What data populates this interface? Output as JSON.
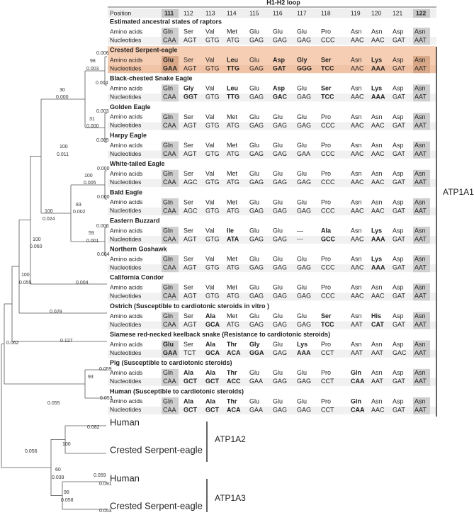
{
  "header": {
    "loop_label": "H1-H2 loop",
    "position_label": "Position",
    "positions": [
      111,
      112,
      113,
      114,
      115,
      116,
      117,
      118,
      119,
      120,
      121,
      122
    ],
    "shaded_columns": [
      0,
      11
    ]
  },
  "row_labels": {
    "amino": "Amino acids",
    "nucleotide": "Nucleotides"
  },
  "sections": [
    {
      "title": "Estimated ancestral states of  raptors",
      "amino_acids": [
        "Gln",
        "Ser",
        "Val",
        "Met",
        "Glu",
        "Glu",
        "Glu",
        "Pro",
        "Asn",
        "Asn",
        "Asp",
        "Asn"
      ],
      "nucleotides": [
        "CAA",
        "AGT",
        "GTG",
        "ATG",
        "GAG",
        "GAG",
        "GAG",
        "CCC",
        "AAC",
        "AAC",
        "GAT",
        "AAT"
      ],
      "bold": []
    },
    {
      "title": "Crested Serpent-eagle",
      "highlight": true,
      "amino_acids": [
        "Glu",
        "Ser",
        "Val",
        "Leu",
        "Glu",
        "Asp",
        "Gly",
        "Ser",
        "Asn",
        "Lys",
        "Asp",
        "Asn"
      ],
      "nucleotides": [
        "GAA",
        "AGT",
        "GTG",
        "TTG",
        "GAG",
        "GAT",
        "GGG",
        "TCC",
        "AAC",
        "AAA",
        "GAT",
        "AAT"
      ],
      "bold": [
        0,
        3,
        5,
        6,
        7,
        9
      ]
    },
    {
      "title": "Black-chested Snake Eagle",
      "amino_acids": [
        "Gln",
        "Gly",
        "Val",
        "Leu",
        "Glu",
        "Asp",
        "Glu",
        "Ser",
        "Asn",
        "Lys",
        "Asp",
        "Asn"
      ],
      "nucleotides": [
        "CAA",
        "GGT",
        "GTG",
        "TTG",
        "GAG",
        "GAC",
        "GAG",
        "TCC",
        "AAC",
        "AAA",
        "GAT",
        "AAT"
      ],
      "bold": [
        1,
        3,
        5,
        7,
        9
      ]
    },
    {
      "title": "Golden Eagle",
      "amino_acids": [
        "Gln",
        "Ser",
        "Val",
        "Met",
        "Glu",
        "Glu",
        "Glu",
        "Pro",
        "Asn",
        "Asn",
        "Asp",
        "Asn"
      ],
      "nucleotides": [
        "CAA",
        "AGT",
        "GTG",
        "ATG",
        "GAG",
        "GAG",
        "GAG",
        "CCC",
        "AAC",
        "AAC",
        "GAT",
        "AAT"
      ],
      "bold": []
    },
    {
      "title": "Harpy Eagle",
      "amino_acids": [
        "Gln",
        "Ser",
        "Val",
        "Met",
        "Glu",
        "Glu",
        "Glu",
        "Pro",
        "Asn",
        "Asn",
        "Asp",
        "Asn"
      ],
      "nucleotides": [
        "CAA",
        "AGT",
        "GTG",
        "ATG",
        "GAG",
        "GAG",
        "GAA",
        "CCC",
        "AAC",
        "AAC",
        "GAT",
        "AAT"
      ],
      "bold": []
    },
    {
      "title": "White-tailed Eagle",
      "amino_acids": [
        "Gln",
        "Ser",
        "Val",
        "Met",
        "Glu",
        "Glu",
        "Glu",
        "Pro",
        "Asn",
        "Asn",
        "Asp",
        "Asn"
      ],
      "nucleotides": [
        "CAA",
        "AGC",
        "GTG",
        "ATG",
        "GAG",
        "GAG",
        "GAG",
        "CCC",
        "AAC",
        "AAC",
        "GAT",
        "AAT"
      ],
      "bold": []
    },
    {
      "title": "Bald Eagle",
      "amino_acids": [
        "Gln",
        "Ser",
        "Val",
        "Met",
        "Glu",
        "Glu",
        "Glu",
        "Pro",
        "Asn",
        "Asn",
        "Asp",
        "Asn"
      ],
      "nucleotides": [
        "CAA",
        "AGC",
        "GTG",
        "ATG",
        "GAG",
        "GAG",
        "GAG",
        "CCC",
        "AAC",
        "AAC",
        "GAT",
        "AAT"
      ],
      "bold": []
    },
    {
      "title": "Eastern Buzzard",
      "amino_acids": [
        "Gln",
        "Ser",
        "Val",
        "Ile",
        "Glu",
        "Glu",
        "—",
        "Ala",
        "Asn",
        "Lys",
        "Asp",
        "Asn"
      ],
      "nucleotides": [
        "CAA",
        "AGT",
        "GTG",
        "ATA",
        "GAG",
        "GAG",
        "---",
        "GCC",
        "AAC",
        "AAA",
        "GAT",
        "AAT"
      ],
      "bold": [
        3,
        7,
        9
      ]
    },
    {
      "title": "Northern Goshawk",
      "amino_acids": [
        "Gln",
        "Ser",
        "Val",
        "Met",
        "Glu",
        "Glu",
        "Glu",
        "Pro",
        "Asn",
        "Lys",
        "Asp",
        "Asn"
      ],
      "nucleotides": [
        "CAA",
        "AGT",
        "GTG",
        "ATG",
        "GAG",
        "GAG",
        "GAG",
        "CCC",
        "AAC",
        "AAA",
        "GAT",
        "AAT"
      ],
      "bold": [
        9
      ]
    },
    {
      "title": "California Condor",
      "amino_acids": [
        "Gln",
        "Ser",
        "Val",
        "Met",
        "Glu",
        "Glu",
        "Glu",
        "Pro",
        "Asn",
        "Asn",
        "Asp",
        "Asn"
      ],
      "nucleotides": [
        "CAA",
        "AGT",
        "GTG",
        "ATG",
        "GAG",
        "GAG",
        "GAG",
        "CCC",
        "AAC",
        "AAC",
        "GAT",
        "AAT"
      ],
      "bold": []
    },
    {
      "title": "Ostrich (Susceptible to cardiotonic steroids in vitro )",
      "amino_acids": [
        "Gln",
        "Ser",
        "Ala",
        "Met",
        "Glu",
        "Glu",
        "Glu",
        "Ser",
        "Asn",
        "His",
        "Asp",
        "Asn"
      ],
      "nucleotides": [
        "CAA",
        "AGT",
        "GCA",
        "ATG",
        "GAG",
        "GAG",
        "GAG",
        "TCC",
        "AAT",
        "CAT",
        "GAT",
        "AAT"
      ],
      "bold": [
        2,
        7,
        9
      ]
    },
    {
      "title": "Siamese red-necked keelback snake (Resistance to cardiotonic steroids)",
      "amino_acids": [
        "Glu",
        "Ser",
        "Ala",
        "Thr",
        "Gly",
        "Glu",
        "Lys",
        "Pro",
        "Asn",
        "Asn",
        "Asp",
        "Asn"
      ],
      "nucleotides": [
        "GAA",
        "TCT",
        "GCA",
        "ACA",
        "GGA",
        "GAG",
        "AAA",
        "CCT",
        "AAT",
        "AAT",
        "GAC",
        "AAT"
      ],
      "bold": [
        0,
        2,
        3,
        4,
        6
      ]
    },
    {
      "title": "Pig (Susceptible to cardiotonic steroids)",
      "amino_acids": [
        "Gln",
        "Ala",
        "Ala",
        "Thr",
        "Glu",
        "Glu",
        "Glu",
        "Pro",
        "Gln",
        "Asn",
        "Asp",
        "Asn"
      ],
      "nucleotides": [
        "CAA",
        "GCT",
        "GCT",
        "ACC",
        "GAA",
        "GAG",
        "GAG",
        "CCT",
        "CAA",
        "AAT",
        "GAT",
        "AAT"
      ],
      "bold": [
        1,
        2,
        3,
        8
      ]
    },
    {
      "title": "Human (Susceptible to cardiotonic steroids)",
      "amino_acids": [
        "Gln",
        "Ala",
        "Ala",
        "Thr",
        "Glu",
        "Glu",
        "Glu",
        "Pro",
        "Gln",
        "Asn",
        "Asp",
        "Asn"
      ],
      "nucleotides": [
        "CAA",
        "GCT",
        "GCT",
        "ACA",
        "GAA",
        "GAG",
        "GAG",
        "CCT",
        "CAA",
        "AAC",
        "GAT",
        "AAT"
      ],
      "bold": [
        1,
        2,
        3,
        8
      ]
    }
  ],
  "tree": {
    "labels": [
      "0.006",
      "98",
      "0.003",
      "0.004",
      "30",
      "0.000",
      "0.003",
      "31",
      "0.000",
      "0.005",
      "100",
      "0.011",
      "0.000",
      "100",
      "0.005",
      "0.000",
      "83",
      "0.002",
      "0.006",
      "59",
      "0.001",
      "0.004",
      "100",
      "0.024",
      "0.004",
      "100",
      "0.060",
      "0.029",
      "100",
      "0.055",
      "0.127",
      "0.062",
      "0.059",
      "93",
      "0.055",
      "0.053",
      "0.082",
      "100",
      "0.056",
      "0.059",
      "60",
      "0.039",
      "0.091",
      "98",
      "0.058",
      "0.053"
    ]
  },
  "genes": [
    "ATP1A1",
    "ATP1A2",
    "ATP1A3"
  ],
  "paralog_leaves": [
    "Human",
    "Crested Serpent-eagle",
    "Human",
    "Crested Serpent-eagle"
  ]
}
